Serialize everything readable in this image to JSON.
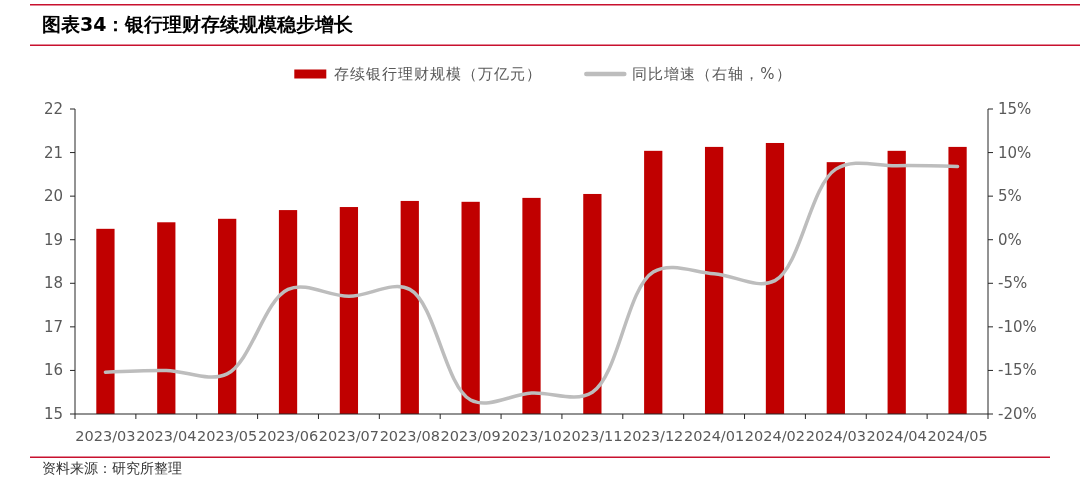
{
  "chart_data": {
    "type": "bar",
    "title": "图表34：银行理财存续规模稳步增长",
    "categories": [
      "2023/03",
      "2023/04",
      "2023/05",
      "2023/06",
      "2023/07",
      "2023/08",
      "2023/09",
      "2023/10",
      "2023/11",
      "2023/12",
      "2024/01",
      "2024/02",
      "2024/03",
      "2024/04",
      "2024/05"
    ],
    "series": [
      {
        "name": "存续银行理财规模（万亿元）",
        "color": "#c00000",
        "values": [
          19.25,
          19.4,
          19.48,
          19.68,
          19.75,
          19.89,
          19.87,
          19.96,
          20.05,
          21.04,
          21.13,
          21.22,
          20.78,
          21.04,
          21.13
        ]
      },
      {
        "name": "同比增速（右轴，%）",
        "type": "line",
        "axis": "y2",
        "color": "#bdbdbd",
        "values": [
          -15.2,
          -15.0,
          -15.4,
          -5.7,
          -6.5,
          -5.7,
          -18.4,
          -17.6,
          -17.5,
          -3.7,
          -3.9,
          -4.7,
          8.1,
          8.5,
          8.4
        ]
      }
    ],
    "ylim": [
      15,
      22
    ],
    "yticks": [
      15,
      16,
      17,
      18,
      19,
      20,
      21,
      22
    ],
    "y2lim": [
      -20,
      15
    ],
    "y2ticks": [
      {
        "value": -20,
        "label": "-20%"
      },
      {
        "value": -15,
        "label": "-15%"
      },
      {
        "value": -10,
        "label": "-10%"
      },
      {
        "value": -5,
        "label": "-5%"
      },
      {
        "value": 0,
        "label": "0%"
      },
      {
        "value": 5,
        "label": "5%"
      },
      {
        "value": 10,
        "label": "10%"
      },
      {
        "value": 15,
        "label": "15%"
      }
    ],
    "legend": "top",
    "annotations": [
      "资料来源：研究所整理"
    ]
  }
}
